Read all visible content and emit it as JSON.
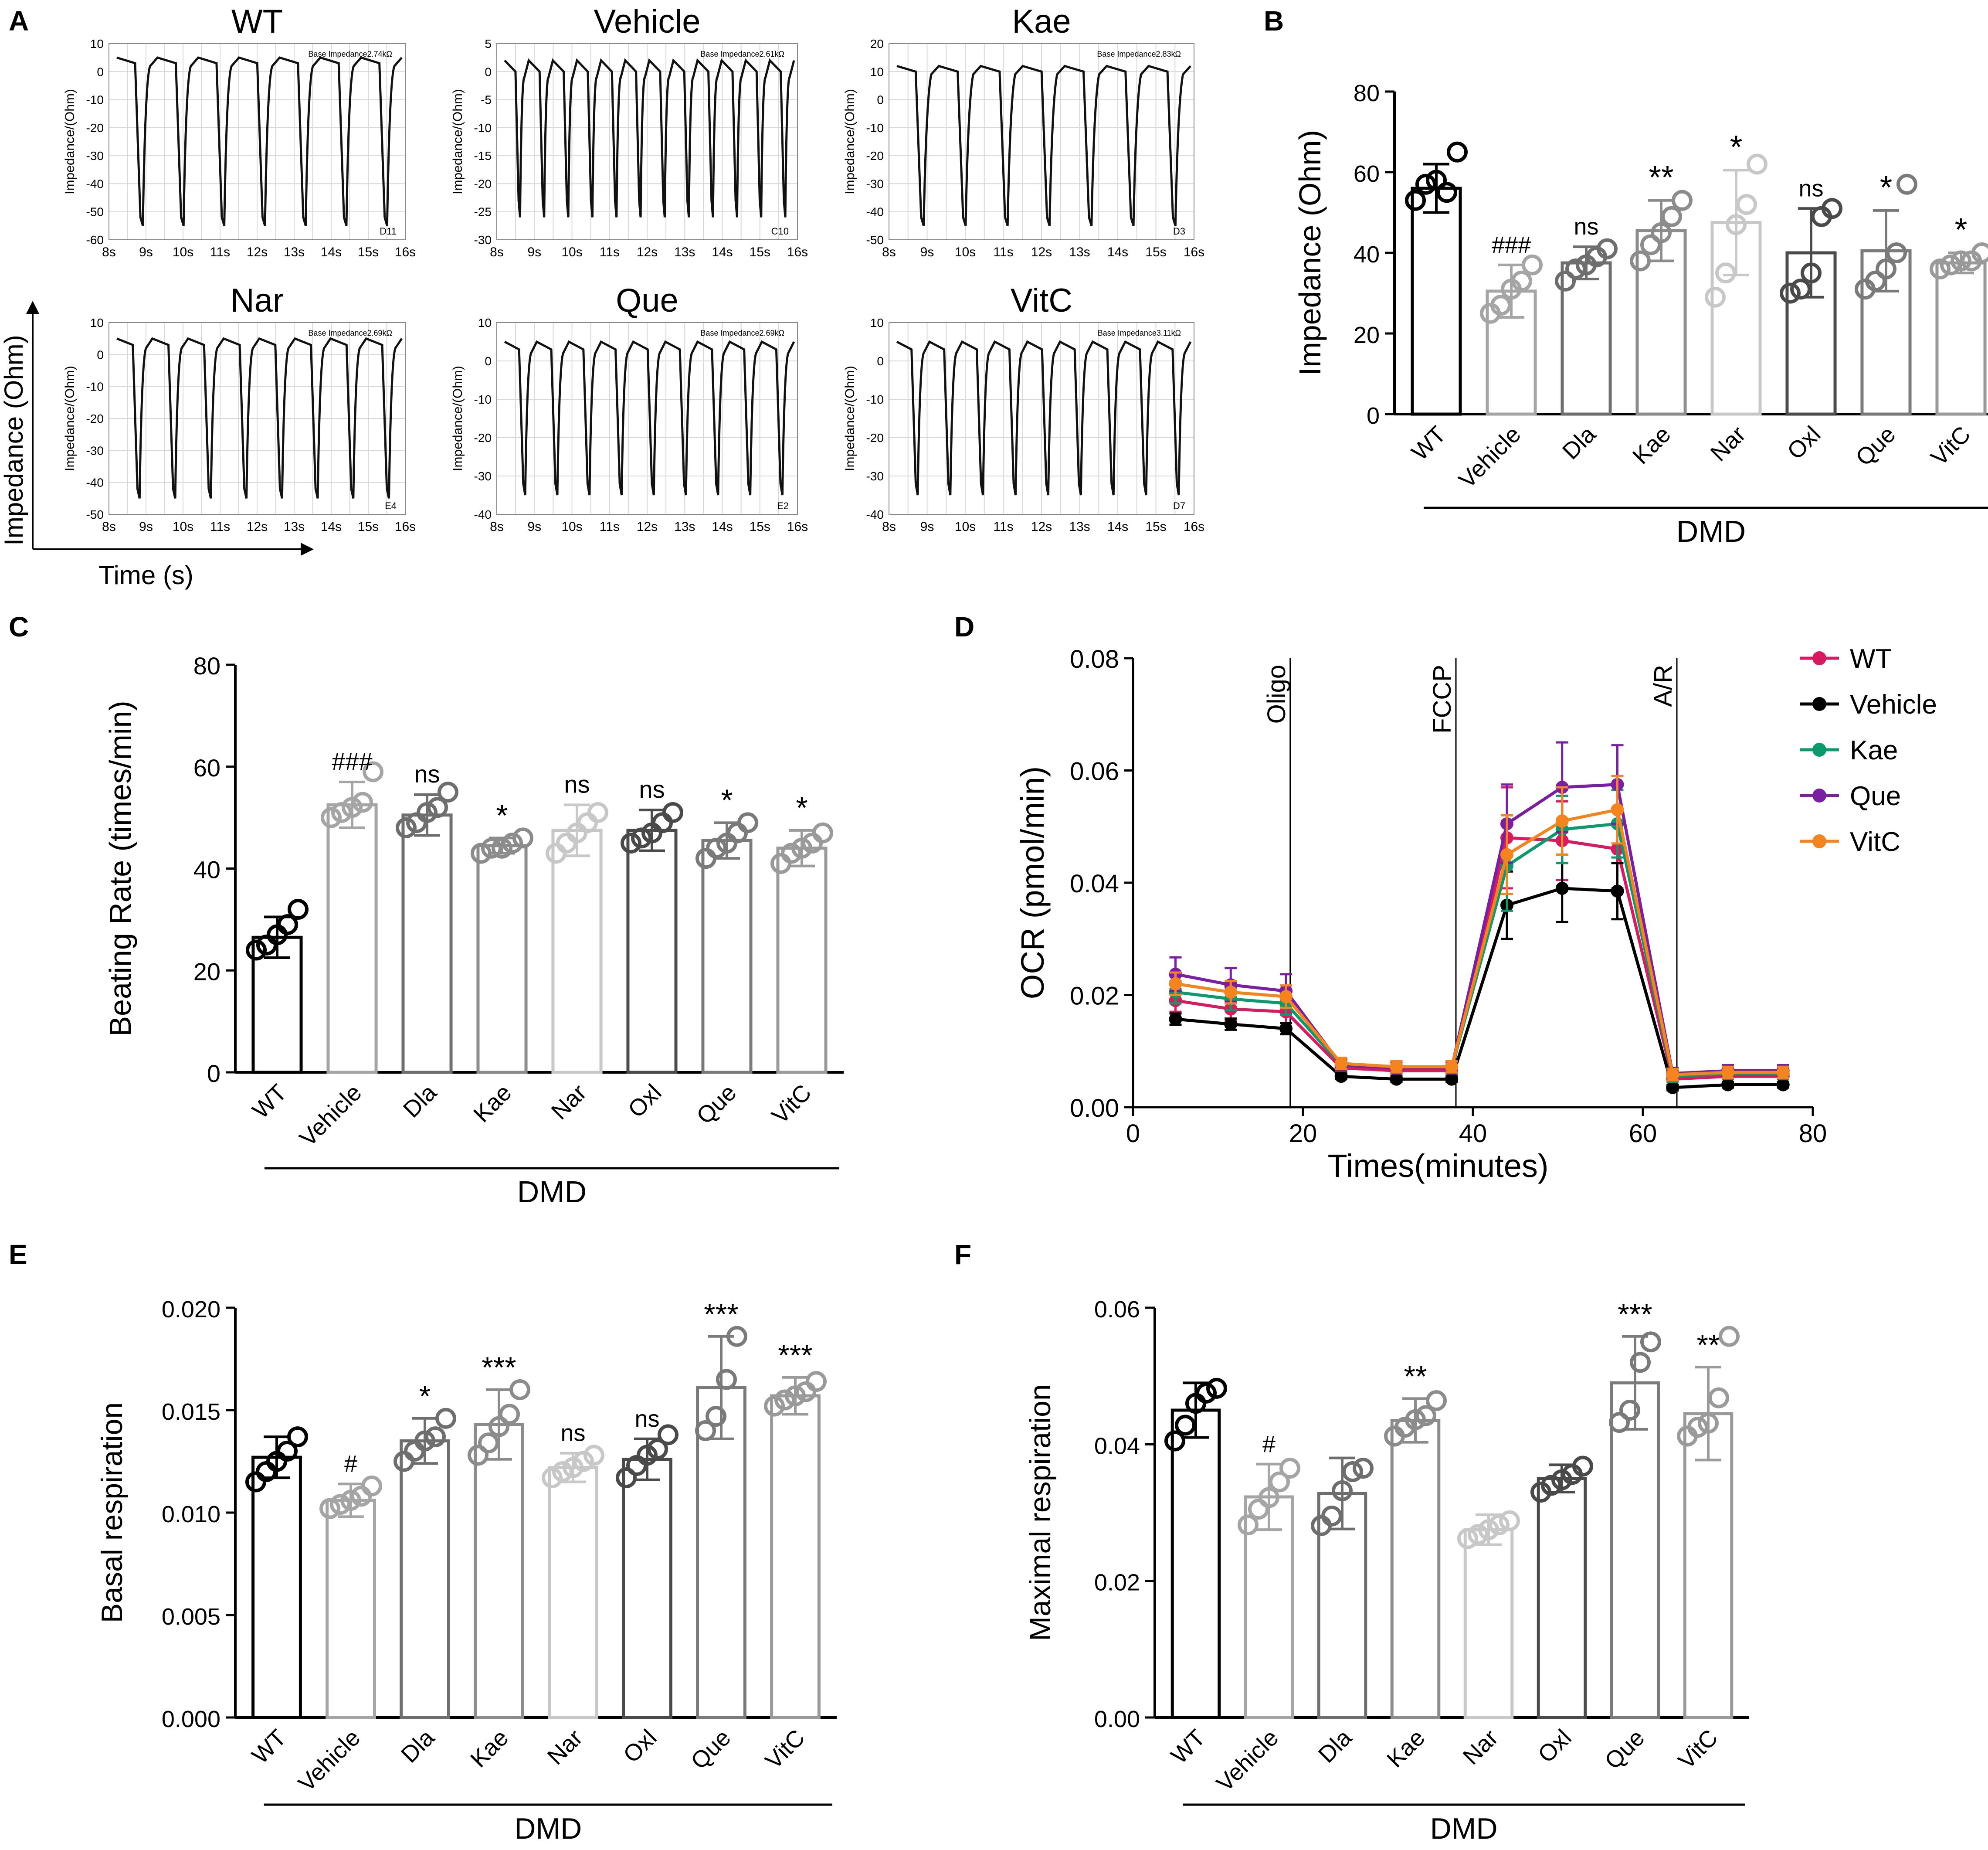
{
  "panel_labels": {
    "A": "A",
    "B": "B",
    "C": "C",
    "D": "D",
    "E": "E",
    "F": "F"
  },
  "colors": {
    "WT": "#000000",
    "Vehicle": "#a5a5a5",
    "Dla": "#6e6e6e",
    "Kae": "#8c8c8c",
    "Nar": "#c8c8c8",
    "Oxl": "#4a4a4a",
    "Que": "#7a7a7a",
    "VitC": "#9a9a9a",
    "line_WT": "#d81b60",
    "line_Vehicle": "#000000",
    "line_Kae": "#0a9a6e",
    "line_Que": "#7b1fa2",
    "line_VitC": "#f5841f"
  },
  "panel_a": {
    "ylabel_small": "Impedance/(Ohm)",
    "big_ylabel": "Impedance (Ohm)",
    "big_xlabel": "Time (s)",
    "x_ticks": [
      "8s",
      "9s",
      "10s",
      "11s",
      "12s",
      "13s",
      "14s",
      "15s",
      "16s"
    ],
    "traces": [
      {
        "title": "WT",
        "base": "Base Impedance2.74kΩ",
        "well": "D11",
        "yticks": [
          10,
          0,
          -10,
          -20,
          -30,
          -40,
          -50,
          -60
        ],
        "ymin": -60,
        "ymax": 10,
        "peak": 5,
        "trough": -55,
        "beats": 7
      },
      {
        "title": "Vehicle",
        "base": "Base Impedance2.61kΩ",
        "well": "C10",
        "yticks": [
          5,
          0,
          -5,
          -10,
          -15,
          -20,
          -25,
          -30
        ],
        "ymin": -30,
        "ymax": 5,
        "peak": 2,
        "trough": -26,
        "beats": 12
      },
      {
        "title": "Kae",
        "base": "Base Impedance2.83kΩ",
        "well": "D3",
        "yticks": [
          20,
          10,
          0,
          -10,
          -20,
          -30,
          -40,
          -50
        ],
        "ymin": -50,
        "ymax": 20,
        "peak": 12,
        "trough": -45,
        "beats": 7
      },
      {
        "title": "Nar",
        "base": "Base Impedance2.69kΩ",
        "well": "E4",
        "yticks": [
          10,
          0,
          -10,
          -20,
          -30,
          -40,
          -50
        ],
        "ymin": -50,
        "ymax": 10,
        "peak": 5,
        "trough": -45,
        "beats": 8
      },
      {
        "title": "Que",
        "base": "Base Impedance2.69kΩ",
        "well": "E2",
        "yticks": [
          10,
          0,
          -10,
          -20,
          -30,
          -40
        ],
        "ymin": -40,
        "ymax": 10,
        "peak": 5,
        "trough": -35,
        "beats": 9
      },
      {
        "title": "VitC",
        "base": "Base Impedance3.11kΩ",
        "well": "D7",
        "yticks": [
          10,
          0,
          -10,
          -20,
          -30,
          -40
        ],
        "ymin": -40,
        "ymax": 10,
        "peak": 5,
        "trough": -35,
        "beats": 9
      }
    ]
  },
  "chart_data": [
    {
      "panel": "B",
      "type": "bar",
      "title": "",
      "ylabel": "Impedance (Ohm)",
      "xlabel": "",
      "group_label": "DMD",
      "ylim": [
        0,
        80
      ],
      "yticks": [
        "0",
        "20",
        "40",
        "60",
        "80"
      ],
      "categories": [
        "WT",
        "Vehicle",
        "Dla",
        "Kae",
        "Nar",
        "Oxl",
        "Que",
        "VitC"
      ],
      "values": [
        56,
        30.5,
        37.5,
        45.5,
        47.5,
        40,
        40.5,
        37.5
      ],
      "errors": [
        6,
        6.5,
        4,
        7.5,
        13,
        11,
        10,
        2.5
      ],
      "points": [
        [
          53,
          57,
          58,
          55,
          65
        ],
        [
          25,
          27,
          31,
          33,
          37
        ],
        [
          33,
          36,
          37,
          39,
          41
        ],
        [
          38,
          42,
          45,
          49,
          53
        ],
        [
          29,
          35,
          47,
          52,
          62
        ],
        [
          30,
          31,
          35,
          49,
          51
        ],
        [
          31,
          33,
          36,
          40,
          57
        ],
        [
          36,
          37,
          38,
          38,
          40
        ]
      ],
      "annotations": [
        "",
        "###",
        "ns",
        "**",
        "*",
        "ns",
        "*",
        "*"
      ]
    },
    {
      "panel": "C",
      "type": "bar",
      "title": "",
      "ylabel": "Beating Rate (times/min)",
      "xlabel": "",
      "group_label": "DMD",
      "ylim": [
        0,
        80
      ],
      "yticks": [
        "0",
        "20",
        "40",
        "60",
        "80"
      ],
      "categories": [
        "WT",
        "Vehicle",
        "Dla",
        "Kae",
        "Nar",
        "Oxl",
        "Que",
        "VitC"
      ],
      "values": [
        26.5,
        52.5,
        50.5,
        44.5,
        47.5,
        47.5,
        45.5,
        44
      ],
      "errors": [
        4,
        4.5,
        4,
        1.5,
        5,
        4,
        3.5,
        3.5
      ],
      "points": [
        [
          24,
          25,
          27,
          29,
          32
        ],
        [
          50,
          51,
          52,
          53,
          59
        ],
        [
          48,
          49,
          51,
          52,
          55
        ],
        [
          43,
          44,
          44,
          45,
          46
        ],
        [
          43,
          45,
          47,
          49,
          51
        ],
        [
          45,
          46,
          47,
          49,
          51
        ],
        [
          42,
          44,
          45,
          47,
          49
        ],
        [
          41,
          43,
          44,
          45,
          47
        ]
      ],
      "annotations": [
        "",
        "###",
        "ns",
        "*",
        "ns",
        "ns",
        "*",
        "*"
      ]
    },
    {
      "panel": "D",
      "type": "line",
      "title": "",
      "xlabel": "Times(minutes)",
      "ylabel": "OCR (pmol/min)",
      "xlim": [
        0,
        80
      ],
      "ylim": [
        0,
        0.08
      ],
      "xticks": [
        "0",
        "20",
        "40",
        "60",
        "80"
      ],
      "yticks": [
        "0.00",
        "0.02",
        "0.04",
        "0.06",
        "0.08"
      ],
      "x": [
        5,
        11.5,
        18,
        24.5,
        31,
        37.5,
        44,
        50.5,
        57,
        63.5,
        70,
        76.5
      ],
      "injections": [
        {
          "label": "Oligo",
          "x": 18.5
        },
        {
          "label": "FCCP",
          "x": 38
        },
        {
          "label": "A/R",
          "x": 64
        }
      ],
      "series": [
        {
          "name": "WT",
          "values": [
            0.019,
            0.0175,
            0.017,
            0.007,
            0.0065,
            0.0065,
            0.048,
            0.0475,
            0.046,
            0.005,
            0.0055,
            0.0055
          ],
          "errors": [
            0.002,
            0.002,
            0.002,
            0.001,
            0.001,
            0.001,
            0.009,
            0.007,
            0.007,
            0.001,
            0.001,
            0.001
          ]
        },
        {
          "name": "Vehicle",
          "values": [
            0.0157,
            0.0148,
            0.014,
            0.0055,
            0.005,
            0.005,
            0.036,
            0.039,
            0.0385,
            0.0035,
            0.004,
            0.004
          ],
          "errors": [
            0.001,
            0.001,
            0.001,
            0.0005,
            0.0005,
            0.0005,
            0.006,
            0.006,
            0.005,
            0.0005,
            0.0005,
            0.0005
          ]
        },
        {
          "name": "Kae",
          "values": [
            0.0205,
            0.0193,
            0.0185,
            0.0075,
            0.007,
            0.007,
            0.043,
            0.0495,
            0.0505,
            0.0055,
            0.006,
            0.006
          ],
          "errors": [
            0.002,
            0.002,
            0.002,
            0.001,
            0.001,
            0.001,
            0.008,
            0.006,
            0.006,
            0.001,
            0.001,
            0.001
          ]
        },
        {
          "name": "Que",
          "values": [
            0.0237,
            0.0218,
            0.0207,
            0.0075,
            0.007,
            0.007,
            0.0505,
            0.057,
            0.0575,
            0.006,
            0.0065,
            0.0065
          ],
          "errors": [
            0.003,
            0.003,
            0.003,
            0.001,
            0.001,
            0.001,
            0.007,
            0.008,
            0.007,
            0.001,
            0.001,
            0.001
          ]
        },
        {
          "name": "VitC",
          "values": [
            0.022,
            0.0205,
            0.0197,
            0.0078,
            0.0072,
            0.0072,
            0.045,
            0.051,
            0.053,
            0.0058,
            0.0062,
            0.0062
          ],
          "errors": [
            0.002,
            0.002,
            0.002,
            0.001,
            0.001,
            0.001,
            0.007,
            0.006,
            0.006,
            0.001,
            0.001,
            0.001
          ]
        }
      ]
    },
    {
      "panel": "E",
      "type": "bar",
      "title": "",
      "ylabel": "Basal respiration",
      "xlabel": "",
      "group_label": "DMD",
      "ylim": [
        0,
        0.02
      ],
      "yticks": [
        "0.000",
        "0.005",
        "0.010",
        "0.015",
        "0.020"
      ],
      "categories": [
        "WT",
        "Vehicle",
        "Dla",
        "Kae",
        "Nar",
        "Oxl",
        "Que",
        "VitC"
      ],
      "values": [
        0.0127,
        0.0106,
        0.0135,
        0.0143,
        0.0122,
        0.0126,
        0.0161,
        0.0157
      ],
      "errors": [
        0.001,
        0.0008,
        0.0011,
        0.0017,
        0.0007,
        0.001,
        0.0025,
        0.0009
      ],
      "points": [
        [
          0.0115,
          0.012,
          0.0125,
          0.013,
          0.0137
        ],
        [
          0.0102,
          0.0104,
          0.0106,
          0.0108,
          0.0113
        ],
        [
          0.0125,
          0.013,
          0.0135,
          0.0137,
          0.0146
        ],
        [
          0.0128,
          0.0134,
          0.0142,
          0.0148,
          0.016
        ],
        [
          0.0117,
          0.012,
          0.0122,
          0.0125,
          0.0128
        ],
        [
          0.0117,
          0.0123,
          0.0128,
          0.0131,
          0.0138
        ],
        [
          0.014,
          0.0147,
          0.0165,
          0.0186
        ],
        [
          0.0152,
          0.0155,
          0.0157,
          0.0159,
          0.0164
        ]
      ],
      "annotations": [
        "",
        "#",
        "*",
        "***",
        "ns",
        "ns",
        "***",
        "***"
      ]
    },
    {
      "panel": "F",
      "type": "bar",
      "title": "",
      "ylabel": "Maximal respiration",
      "xlabel": "",
      "group_label": "DMD",
      "ylim": [
        0,
        0.06
      ],
      "yticks": [
        "0.00",
        "0.02",
        "0.04",
        "0.06"
      ],
      "categories": [
        "WT",
        "Vehicle",
        "Dla",
        "Kae",
        "Nar",
        "Oxl",
        "Que",
        "VitC"
      ],
      "values": [
        0.045,
        0.0323,
        0.0328,
        0.0435,
        0.0275,
        0.035,
        0.049,
        0.0445
      ],
      "errors": [
        0.004,
        0.0048,
        0.0052,
        0.0032,
        0.0022,
        0.002,
        0.0068,
        0.0068
      ],
      "points": [
        [
          0.0405,
          0.0428,
          0.046,
          0.0475,
          0.0482
        ],
        [
          0.0282,
          0.0305,
          0.0322,
          0.0345,
          0.0365
        ],
        [
          0.0281,
          0.0295,
          0.0332,
          0.036,
          0.0365
        ],
        [
          0.0412,
          0.0425,
          0.0436,
          0.0442,
          0.0464
        ],
        [
          0.0262,
          0.0268,
          0.0275,
          0.0282,
          0.0288
        ],
        [
          0.033,
          0.034,
          0.0348,
          0.0356,
          0.0368
        ],
        [
          0.0432,
          0.045,
          0.052,
          0.055
        ],
        [
          0.0412,
          0.0425,
          0.0431,
          0.0468,
          0.0558
        ]
      ],
      "annotations": [
        "",
        "#",
        "",
        "**",
        "",
        "",
        "***",
        "**"
      ]
    }
  ]
}
